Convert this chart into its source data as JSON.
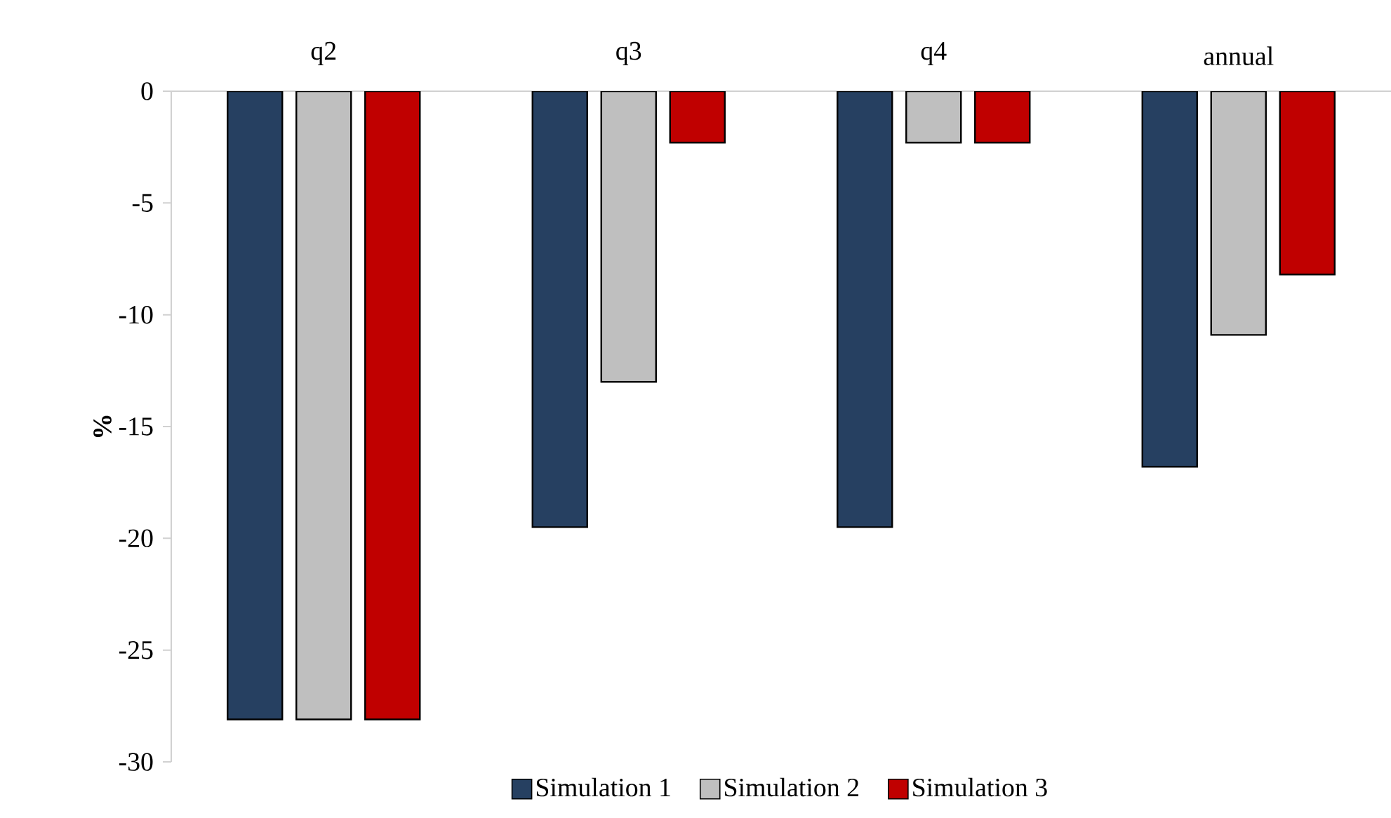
{
  "chart_data": {
    "type": "bar",
    "categories": [
      "q2",
      "q3",
      "q4",
      "annual"
    ],
    "ylabel": "%",
    "ylim": [
      -30,
      0
    ],
    "yticks": [
      -30,
      -25,
      -20,
      -15,
      -10,
      -5,
      0
    ],
    "grid": false,
    "legend": "bottom",
    "series": [
      {
        "name": "Simulation 1",
        "color": "#264061",
        "values": [
          -28.1,
          -19.5,
          -19.5,
          -16.8
        ]
      },
      {
        "name": "Simulation 2",
        "color": "#bfbfbf",
        "values": [
          -28.1,
          -13.0,
          -2.3,
          -10.9
        ]
      },
      {
        "name": "Simulation 3",
        "color": "#c00000",
        "values": [
          -28.1,
          -2.3,
          -2.3,
          -8.2
        ]
      }
    ]
  }
}
